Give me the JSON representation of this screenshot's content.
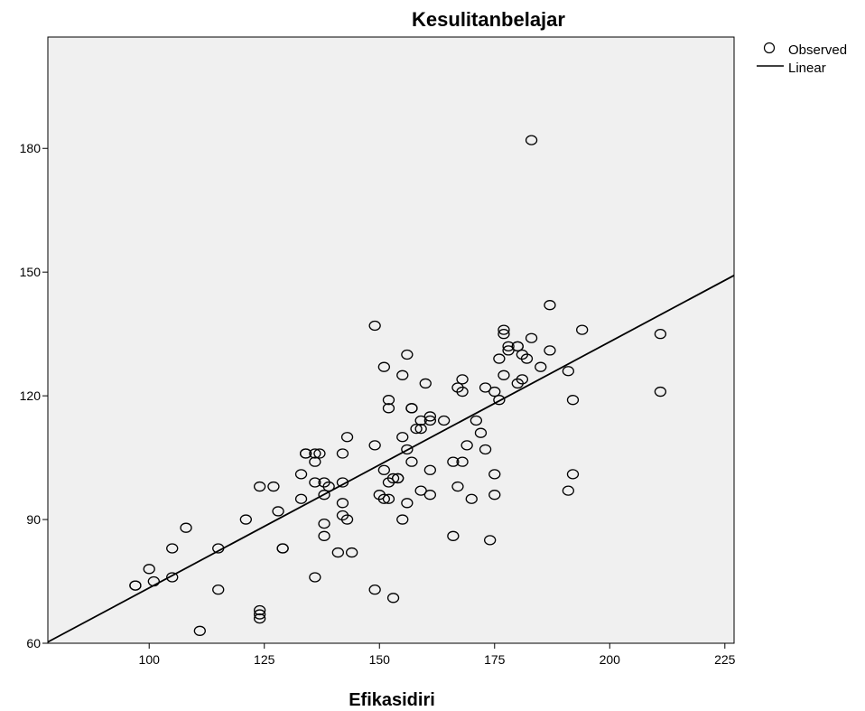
{
  "chart_data": {
    "type": "scatter",
    "title": "Kesulitanbelajar",
    "xlabel": "Efikasidiri",
    "ylabel": "",
    "xlim": [
      78,
      227
    ],
    "ylim": [
      60,
      207
    ],
    "xticks": [
      100,
      125,
      150,
      175,
      200,
      225
    ],
    "yticks": [
      60,
      90,
      120,
      150,
      180
    ],
    "grid": false,
    "legend_position": "top-right",
    "legend": [
      "Observed",
      "Linear"
    ],
    "colors": {
      "plot_background": "#f0f0f0",
      "marker": "#000000",
      "line": "#000000"
    },
    "series": [
      {
        "name": "Observed",
        "kind": "points",
        "x": [
          97,
          97,
          100,
          101,
          105,
          105,
          108,
          111,
          115,
          115,
          121,
          124,
          124,
          124,
          124,
          127,
          128,
          129,
          129,
          133,
          133,
          134,
          134,
          136,
          136,
          136,
          136,
          137,
          138,
          138,
          138,
          138,
          139,
          141,
          142,
          142,
          142,
          142,
          143,
          143,
          144,
          149,
          149,
          149,
          150,
          151,
          151,
          151,
          152,
          152,
          152,
          152,
          153,
          153,
          154,
          154,
          155,
          155,
          155,
          156,
          156,
          156,
          157,
          157,
          157,
          158,
          159,
          159,
          159,
          160,
          161,
          161,
          161,
          161,
          164,
          166,
          166,
          167,
          167,
          168,
          168,
          168,
          169,
          170,
          171,
          172,
          173,
          173,
          174,
          175,
          175,
          175,
          176,
          176,
          177,
          177,
          177,
          178,
          178,
          180,
          180,
          180,
          181,
          181,
          182,
          183,
          183,
          185,
          187,
          187,
          191,
          191,
          192,
          192,
          194,
          211,
          211
        ],
        "y": [
          74,
          74,
          78,
          75,
          83,
          76,
          88,
          63,
          83,
          73,
          90,
          98,
          68,
          67,
          66,
          98,
          92,
          83,
          83,
          101,
          95,
          106,
          106,
          106,
          104,
          99,
          76,
          106,
          99,
          96,
          89,
          86,
          98,
          82,
          106,
          99,
          94,
          91,
          110,
          90,
          82,
          137,
          108,
          73,
          96,
          127,
          102,
          95,
          119,
          117,
          99,
          95,
          100,
          71,
          100,
          100,
          125,
          110,
          90,
          130,
          107,
          94,
          117,
          117,
          104,
          112,
          114,
          112,
          97,
          123,
          115,
          114,
          102,
          96,
          114,
          104,
          86,
          122,
          98,
          124,
          121,
          104,
          108,
          95,
          114,
          111,
          122,
          107,
          85,
          121,
          101,
          96,
          129,
          119,
          136,
          135,
          125,
          132,
          131,
          132,
          132,
          123,
          130,
          124,
          129,
          182,
          134,
          127,
          142,
          131,
          126,
          97,
          119,
          101,
          136,
          135,
          121
        ]
      },
      {
        "name": "Linear",
        "kind": "line",
        "x": [
          78,
          227
        ],
        "y": [
          60.3,
          149.2
        ]
      }
    ]
  }
}
